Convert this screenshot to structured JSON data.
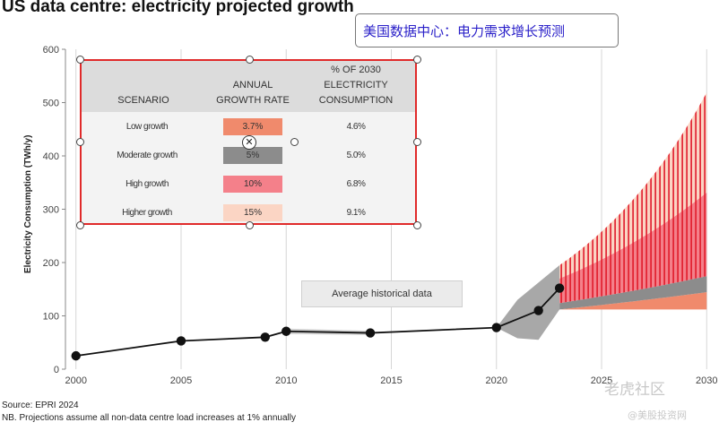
{
  "title": "US data centre: electricity projected growth",
  "cn_caption": "美国数据中心：电力需求增长预测",
  "chart_data": {
    "type": "line",
    "ylabel": "Electricity Consumption (TWh/y)",
    "xlabel": "",
    "xlim": [
      1999.5,
      2030.5
    ],
    "ylim": [
      0,
      600
    ],
    "x_ticks": [
      "2000",
      "2005",
      "2010",
      "2015",
      "2020",
      "2025",
      "2030"
    ],
    "y_ticks": [
      "0",
      "100",
      "200",
      "300",
      "400",
      "500",
      "600"
    ],
    "grid": "vertical",
    "series": [
      {
        "x": [
          2000,
          2005,
          2009,
          2010,
          2014,
          2020,
          2022,
          2023
        ],
        "y": [
          25,
          53,
          60,
          71,
          68,
          78,
          110,
          152
        ]
      }
    ],
    "projections": {
      "start_year": 2023,
      "end_year": 2030,
      "low_growth_pct": 3.7,
      "moderate_growth_pct": 5,
      "high_growth_pct": 10,
      "higher_growth_pct": 15,
      "fan_top_2023": 195,
      "fan_bottom_2023": 112
    },
    "annotation": "Average historical data",
    "colors": {
      "line": "#111111",
      "grey_band": "#a8a8a8",
      "low": "#f08a6c",
      "moderate": "#8c8c8c",
      "high": "#f4808a",
      "higher": "#fbd5c4",
      "hatch": "#e01a2a"
    }
  },
  "table": {
    "headers": {
      "scenario": "SCENARIO",
      "rate": "ANNUAL GROWTH RATE",
      "share": "% OF 2030 ELECTRICITY CONSUMPTION"
    },
    "rows": [
      {
        "scenario": "Low growth",
        "rate": "3.7%",
        "share": "4.6%",
        "color": "#f08a6c"
      },
      {
        "scenario": "Moderate growth",
        "rate": "5%",
        "share": "5.0%",
        "color": "#8c8c8c"
      },
      {
        "scenario": "High growth",
        "rate": "10%",
        "share": "6.8%",
        "color": "#f4808a"
      },
      {
        "scenario": "Higher growth",
        "rate": "15%",
        "share": "9.1%",
        "color": "#fbd5c4"
      }
    ]
  },
  "footer": {
    "source": "Source: EPRI 2024",
    "note": "NB. Projections assume all non-data centre load increases at 1% annually"
  },
  "watermark": {
    "main": "老虎社区",
    "sub": "@美股投资网"
  }
}
